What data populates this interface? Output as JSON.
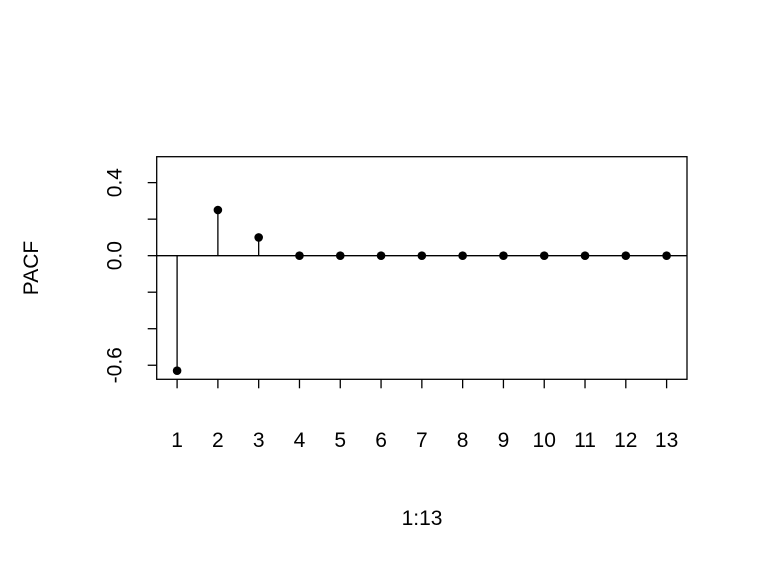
{
  "chart_data": {
    "type": "scatter",
    "style": "stem (type h) with filled points",
    "title": "",
    "xlabel": "1:13",
    "ylabel": "PACF",
    "x": [
      1,
      2,
      3,
      4,
      5,
      6,
      7,
      8,
      9,
      10,
      11,
      12,
      13
    ],
    "values": [
      -0.63,
      0.25,
      0.1,
      0,
      0,
      0,
      0,
      0,
      0,
      0,
      0,
      0,
      0
    ],
    "xlim": [
      0.5,
      13.5
    ],
    "ylim": [
      -0.677,
      0.542
    ],
    "xticks": [
      "1",
      "2",
      "3",
      "4",
      "5",
      "6",
      "7",
      "8",
      "9",
      "10",
      "11",
      "12",
      "13"
    ],
    "yticks": [
      0.4,
      0.2,
      0.0,
      -0.2,
      -0.4,
      -0.6
    ],
    "ytick_labels": [
      "0.4",
      "",
      "0.0",
      "",
      "",
      "-0.6"
    ],
    "hline": 0,
    "grid": false,
    "color": "#000000"
  }
}
